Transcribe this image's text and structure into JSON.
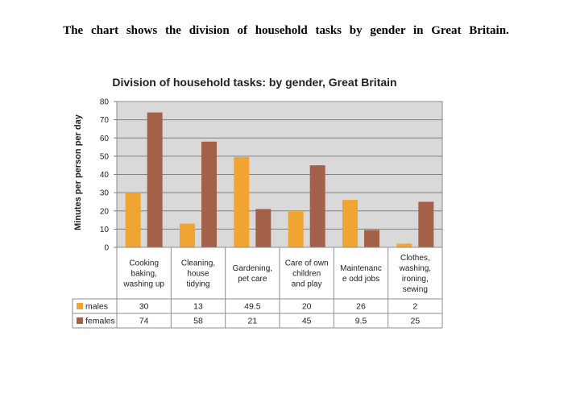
{
  "intro_text": "The chart shows the division of household tasks by gender in Great Britain.",
  "chart_data": {
    "type": "bar",
    "title": "Division of household tasks: by gender, Great Britain",
    "ylabel": "Minutes per person per day",
    "xlabel": "",
    "ylim": [
      0,
      80
    ],
    "yticks": [
      0,
      10,
      20,
      30,
      40,
      50,
      60,
      70,
      80
    ],
    "grid": true,
    "categories": [
      [
        "Cooking",
        "baking,",
        "washing up"
      ],
      [
        "Cleaning,",
        "house",
        "tidying"
      ],
      [
        "Gardening,",
        "pet care"
      ],
      [
        "Care of own",
        "children",
        "and play"
      ],
      [
        "Maintenanc",
        "e odd jobs"
      ],
      [
        "Clothes,",
        "washing,",
        "ironing,",
        "sewing"
      ]
    ],
    "series": [
      {
        "name": "males",
        "values": [
          30,
          13,
          49.5,
          20,
          26,
          2
        ],
        "labels": [
          "30",
          "13",
          "49.5",
          "20",
          "26",
          "2"
        ],
        "color": "#f0a431"
      },
      {
        "name": "females",
        "values": [
          74,
          58,
          21,
          45,
          9.5,
          25
        ],
        "labels": [
          "74",
          "58",
          "21",
          "45",
          "9.5",
          "25"
        ],
        "color": "#a5604a"
      }
    ],
    "plot_background": "#d9d9d9",
    "legend_placement": "data-table"
  }
}
